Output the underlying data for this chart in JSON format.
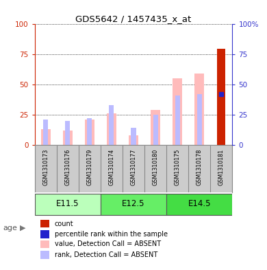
{
  "title": "GDS5642 / 1457435_x_at",
  "samples": [
    "GSM1310173",
    "GSM1310176",
    "GSM1310179",
    "GSM1310174",
    "GSM1310177",
    "GSM1310180",
    "GSM1310175",
    "GSM1310178",
    "GSM1310181"
  ],
  "groups": [
    {
      "label": "E11.5",
      "color": "#bbffbb",
      "indices": [
        0,
        1,
        2
      ]
    },
    {
      "label": "E12.5",
      "color": "#66ee66",
      "indices": [
        3,
        4,
        5
      ]
    },
    {
      "label": "E14.5",
      "color": "#44dd44",
      "indices": [
        6,
        7,
        8
      ]
    }
  ],
  "value_absent": [
    13,
    12,
    21,
    26,
    8,
    29,
    55,
    59,
    0
  ],
  "rank_absent": [
    21,
    20,
    22,
    33,
    14,
    25,
    41,
    42,
    0
  ],
  "count_val": [
    0,
    0,
    0,
    0,
    0,
    0,
    0,
    0,
    80
  ],
  "percentile_rank": [
    0,
    0,
    0,
    0,
    0,
    0,
    0,
    0,
    42
  ],
  "ylim": [
    0,
    100
  ],
  "yticks": [
    0,
    25,
    50,
    75,
    100
  ],
  "left_tick_color": "#cc2200",
  "right_tick_color": "#3333cc",
  "bar_color_value": "#ffbbbb",
  "bar_color_rank": "#bbbbff",
  "bar_color_count": "#cc2200",
  "dot_color_percentile": "#2222cc",
  "bg_sample": "#cccccc",
  "legend_items": [
    {
      "color": "#cc2200",
      "label": "count"
    },
    {
      "color": "#2222cc",
      "label": "percentile rank within the sample"
    },
    {
      "color": "#ffbbbb",
      "label": "value, Detection Call = ABSENT"
    },
    {
      "color": "#bbbbff",
      "label": "rank, Detection Call = ABSENT"
    }
  ]
}
